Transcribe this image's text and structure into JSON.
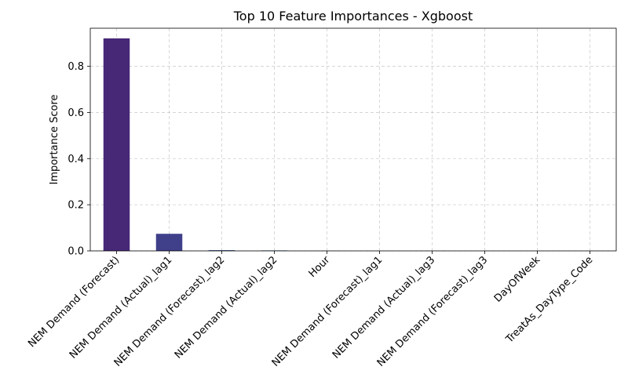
{
  "chart_data": {
    "type": "bar",
    "title": "Top 10 Feature Importances - Xgboost",
    "xlabel": "",
    "ylabel": "Importance Score",
    "categories": [
      "NEM Demand (Forecast)",
      "NEM Demand (Actual)_lag1",
      "NEM Demand (Forecast)_lag2",
      "NEM Demand (Actual)_lag2",
      "Hour",
      "NEM Demand (Forecast)_lag1",
      "NEM Demand (Actual)_lag3",
      "NEM Demand (Forecast)_lag3",
      "DayOfWeek",
      "TreatAs_DayType_Code"
    ],
    "values": [
      0.921,
      0.074,
      0.003,
      0.002,
      0.0005,
      0.0004,
      0.0003,
      0.0002,
      0.0001,
      0.0001
    ],
    "colors": [
      "#472877",
      "#3f3f8a",
      "#32538c",
      "#26658d",
      "#1f768d",
      "#1f888a",
      "#2a9a7f",
      "#40ab70",
      "#5dba5f",
      "#86c64a"
    ],
    "ylim": [
      0,
      0.965
    ],
    "yticks": [
      0.0,
      0.2,
      0.4,
      0.6,
      0.8
    ],
    "ytick_labels": [
      "0.0",
      "0.2",
      "0.4",
      "0.6",
      "0.8"
    ],
    "grid": true
  }
}
